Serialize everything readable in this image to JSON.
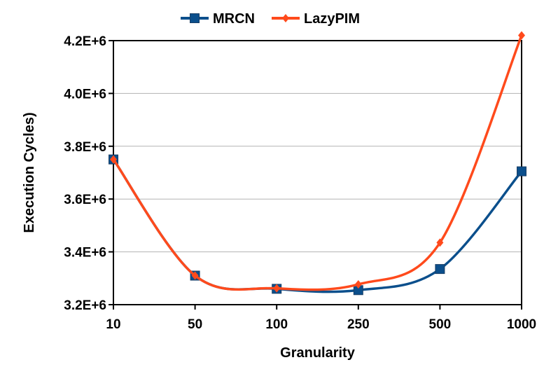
{
  "chart_data": {
    "type": "line",
    "title": "",
    "xlabel": "Granularity",
    "ylabel": "Execution Cycles)",
    "categories": [
      "10",
      "50",
      "100",
      "250",
      "500",
      "1000"
    ],
    "ylim": [
      3200000,
      4200000
    ],
    "yticks": [
      3200000,
      3400000,
      3600000,
      3800000,
      4000000,
      4200000
    ],
    "ytick_labels": [
      "3.2E+6",
      "3.4E+6",
      "3.6E+6",
      "3.8E+6",
      "4.0E+6",
      "4.2E+6"
    ],
    "grid": "horizontal",
    "legend_position": "top-center",
    "series": [
      {
        "name": "MRCN",
        "color": "#0b4f8c",
        "marker": "square",
        "values": [
          3750000,
          3310000,
          3260000,
          3255000,
          3335000,
          3705000
        ]
      },
      {
        "name": "LazyPIM",
        "color": "#ff4a1c",
        "marker": "diamond",
        "values": [
          3750000,
          3310000,
          3262000,
          3277000,
          3435000,
          4220000
        ]
      }
    ]
  }
}
